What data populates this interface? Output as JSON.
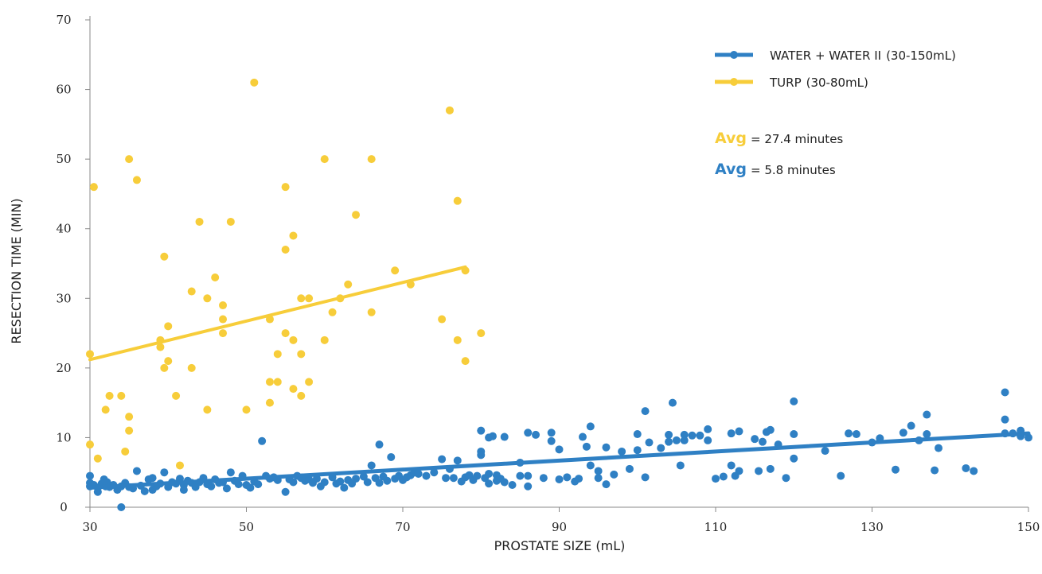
{
  "chart_data": {
    "type": "scatter",
    "xlabel": "PROSTATE SIZE (mL)",
    "ylabel": "RESECTION TIME (MIN)",
    "xlim": [
      30,
      150
    ],
    "ylim": [
      0,
      70
    ],
    "xticks": [
      30,
      50,
      70,
      90,
      110,
      130,
      150
    ],
    "yticks": [
      0,
      10,
      20,
      30,
      40,
      50,
      60,
      70
    ],
    "grid": false,
    "legend_position": "top-right",
    "colors": {
      "water": "#2f80c4",
      "turp": "#f7cd3a"
    },
    "series": [
      {
        "name": "WATER + WATER II",
        "name_suffix": "(30-150mL)",
        "color": "#2f80c4",
        "trend": [
          [
            30,
            2.8
          ],
          [
            150,
            10.6
          ]
        ],
        "points": [
          [
            30,
            4.5
          ],
          [
            30,
            3.5
          ],
          [
            30,
            3
          ],
          [
            30.5,
            3.2
          ],
          [
            31,
            2.2
          ],
          [
            31,
            2.8
          ],
          [
            31.5,
            3.4
          ],
          [
            31.8,
            4
          ],
          [
            32,
            3
          ],
          [
            32.2,
            3.6
          ],
          [
            32.5,
            2.9
          ],
          [
            33,
            3.2
          ],
          [
            33.5,
            2.5
          ],
          [
            34,
            3
          ],
          [
            34,
            0
          ],
          [
            34.5,
            3.5
          ],
          [
            35,
            2.9
          ],
          [
            35.5,
            2.7
          ],
          [
            36,
            5.2
          ],
          [
            36.5,
            3.1
          ],
          [
            37,
            2.3
          ],
          [
            37.5,
            4
          ],
          [
            38,
            4.2
          ],
          [
            38,
            2.5
          ],
          [
            38.5,
            3
          ],
          [
            39,
            3.4
          ],
          [
            39.5,
            5
          ],
          [
            40,
            2.9
          ],
          [
            40.5,
            3.6
          ],
          [
            41,
            3.4
          ],
          [
            41.5,
            4.1
          ],
          [
            42,
            3.2
          ],
          [
            42,
            2.5
          ],
          [
            42.5,
            3.8
          ],
          [
            43,
            3.5
          ],
          [
            43.5,
            2.9
          ],
          [
            44,
            3.6
          ],
          [
            44.5,
            4.2
          ],
          [
            45,
            3.3
          ],
          [
            45.5,
            3
          ],
          [
            46,
            4
          ],
          [
            46.5,
            3.5
          ],
          [
            47,
            3.6
          ],
          [
            47.5,
            2.7
          ],
          [
            48,
            5
          ],
          [
            48.5,
            3.8
          ],
          [
            49,
            3.3
          ],
          [
            49.5,
            4.5
          ],
          [
            50,
            3.2
          ],
          [
            50.5,
            2.8
          ],
          [
            51,
            3.7
          ],
          [
            51.5,
            3.3
          ],
          [
            52,
            9.5
          ],
          [
            52.5,
            4.5
          ],
          [
            53,
            4.1
          ],
          [
            53.5,
            4.3
          ],
          [
            54,
            3.9
          ],
          [
            55,
            2.2
          ],
          [
            55.5,
            4
          ],
          [
            56,
            3.6
          ],
          [
            56.5,
            4.5
          ],
          [
            57,
            4.2
          ],
          [
            57.5,
            3.8
          ],
          [
            58,
            4
          ],
          [
            58.5,
            3.5
          ],
          [
            59,
            4.1
          ],
          [
            59.5,
            3
          ],
          [
            60,
            3.6
          ],
          [
            61,
            4.3
          ],
          [
            61.5,
            3.4
          ],
          [
            62,
            3.7
          ],
          [
            62.5,
            2.8
          ],
          [
            63,
            3.9
          ],
          [
            63.5,
            3.4
          ],
          [
            64,
            4.1
          ],
          [
            65,
            4.4
          ],
          [
            65.5,
            3.6
          ],
          [
            66,
            6
          ],
          [
            66.5,
            4.2
          ],
          [
            67,
            3.5
          ],
          [
            67,
            9
          ],
          [
            67.5,
            4.4
          ],
          [
            68,
            3.8
          ],
          [
            68.5,
            7.2
          ],
          [
            69,
            4.1
          ],
          [
            69.5,
            4.5
          ],
          [
            70,
            3.9
          ],
          [
            70.5,
            4.3
          ],
          [
            71,
            4.6
          ],
          [
            71.5,
            5
          ],
          [
            72,
            4.8
          ],
          [
            73,
            4.5
          ],
          [
            74,
            5
          ],
          [
            75,
            6.9
          ],
          [
            75.5,
            4.2
          ],
          [
            76,
            5.5
          ],
          [
            76.5,
            4.2
          ],
          [
            77,
            6.7
          ],
          [
            77.5,
            3.7
          ],
          [
            78,
            4.3
          ],
          [
            78.5,
            4.6
          ],
          [
            79,
            3.9
          ],
          [
            79.5,
            4.5
          ],
          [
            80,
            11
          ],
          [
            80,
            8
          ],
          [
            80,
            7.5
          ],
          [
            80.5,
            4.2
          ],
          [
            81,
            4.8
          ],
          [
            81,
            10
          ],
          [
            81,
            3.4
          ],
          [
            81.5,
            10.2
          ],
          [
            82,
            4.6
          ],
          [
            82,
            3.8
          ],
          [
            82.5,
            4.1
          ],
          [
            83,
            3.6
          ],
          [
            83,
            10.1
          ],
          [
            84,
            3.2
          ],
          [
            85,
            4.5
          ],
          [
            85,
            6.4
          ],
          [
            86,
            10.7
          ],
          [
            86,
            4.5
          ],
          [
            86,
            3
          ],
          [
            87,
            10.4
          ],
          [
            88,
            4.2
          ],
          [
            89,
            9.5
          ],
          [
            89,
            10.7
          ],
          [
            90,
            8.3
          ],
          [
            90,
            4
          ],
          [
            91,
            4.3
          ],
          [
            92,
            3.7
          ],
          [
            92.5,
            4.1
          ],
          [
            93,
            10.1
          ],
          [
            93.5,
            8.7
          ],
          [
            94,
            11.6
          ],
          [
            94,
            6
          ],
          [
            95,
            4.2
          ],
          [
            95,
            5.2
          ],
          [
            96,
            8.6
          ],
          [
            96,
            3.3
          ],
          [
            97,
            4.7
          ],
          [
            98,
            8
          ],
          [
            99,
            5.5
          ],
          [
            100,
            10.5
          ],
          [
            100,
            8.2
          ],
          [
            101,
            13.8
          ],
          [
            101,
            4.3
          ],
          [
            101.5,
            9.3
          ],
          [
            103,
            8.5
          ],
          [
            104,
            10.4
          ],
          [
            104,
            9.4
          ],
          [
            104.5,
            15
          ],
          [
            105,
            9.6
          ],
          [
            105.5,
            6
          ],
          [
            106,
            10.4
          ],
          [
            106,
            9.6
          ],
          [
            107,
            10.3
          ],
          [
            108,
            10.3
          ],
          [
            109,
            11.2
          ],
          [
            109,
            9.6
          ],
          [
            110,
            4.1
          ],
          [
            111,
            4.4
          ],
          [
            112,
            10.6
          ],
          [
            112,
            6
          ],
          [
            112.5,
            4.5
          ],
          [
            113,
            10.9
          ],
          [
            113,
            5.2
          ],
          [
            115,
            9.8
          ],
          [
            115.5,
            5.2
          ],
          [
            116,
            9.4
          ],
          [
            116.5,
            10.8
          ],
          [
            117,
            11.1
          ],
          [
            117,
            5.5
          ],
          [
            118,
            9
          ],
          [
            119,
            4.2
          ],
          [
            120,
            15.2
          ],
          [
            120,
            10.5
          ],
          [
            120,
            7
          ],
          [
            124,
            8.1
          ],
          [
            126,
            4.5
          ],
          [
            127,
            10.6
          ],
          [
            128,
            10.5
          ],
          [
            130,
            9.3
          ],
          [
            131,
            9.9
          ],
          [
            133,
            5.4
          ],
          [
            134,
            10.7
          ],
          [
            135,
            11.7
          ],
          [
            136,
            9.6
          ],
          [
            137,
            13.3
          ],
          [
            137,
            10.5
          ],
          [
            138,
            5.3
          ],
          [
            138.5,
            8.5
          ],
          [
            142,
            5.6
          ],
          [
            143,
            5.2
          ],
          [
            147,
            16.5
          ],
          [
            147,
            12.6
          ],
          [
            147,
            10.6
          ],
          [
            148,
            10.6
          ],
          [
            149,
            11
          ],
          [
            149,
            10.2
          ],
          [
            150,
            10
          ]
        ]
      },
      {
        "name": "TURP",
        "name_suffix": "(30-80mL)",
        "color": "#f7cd3a",
        "trend": [
          [
            30,
            21.2
          ],
          [
            78,
            34.5
          ]
        ],
        "points": [
          [
            30,
            9
          ],
          [
            30,
            22
          ],
          [
            30.5,
            46
          ],
          [
            31,
            7
          ],
          [
            32,
            14
          ],
          [
            32.5,
            16
          ],
          [
            34,
            16
          ],
          [
            34.5,
            8
          ],
          [
            35,
            50
          ],
          [
            35,
            11
          ],
          [
            35,
            13
          ],
          [
            36,
            47
          ],
          [
            39,
            24
          ],
          [
            39,
            23
          ],
          [
            39.5,
            36
          ],
          [
            39.5,
            20
          ],
          [
            40,
            21
          ],
          [
            40,
            26
          ],
          [
            41,
            16
          ],
          [
            41.5,
            6
          ],
          [
            43,
            20
          ],
          [
            43,
            31
          ],
          [
            44,
            41
          ],
          [
            45,
            30
          ],
          [
            45,
            14
          ],
          [
            46,
            33
          ],
          [
            47,
            25
          ],
          [
            47,
            27
          ],
          [
            47,
            29
          ],
          [
            48,
            41
          ],
          [
            50,
            14
          ],
          [
            51,
            61
          ],
          [
            53,
            27
          ],
          [
            53,
            15
          ],
          [
            53,
            18
          ],
          [
            54,
            22
          ],
          [
            54,
            18
          ],
          [
            55,
            46
          ],
          [
            55,
            37
          ],
          [
            55,
            25
          ],
          [
            56,
            17
          ],
          [
            56,
            39
          ],
          [
            56,
            24
          ],
          [
            57,
            30
          ],
          [
            57,
            16
          ],
          [
            57,
            22
          ],
          [
            58,
            30
          ],
          [
            58,
            18
          ],
          [
            60,
            24
          ],
          [
            60,
            50
          ],
          [
            61,
            28
          ],
          [
            62,
            30
          ],
          [
            63,
            32
          ],
          [
            64,
            42
          ],
          [
            66,
            50
          ],
          [
            66,
            28
          ],
          [
            69,
            34
          ],
          [
            71,
            32
          ],
          [
            75,
            27
          ],
          [
            76,
            57
          ],
          [
            77,
            24
          ],
          [
            77,
            44
          ],
          [
            78,
            21
          ],
          [
            78,
            34
          ],
          [
            80,
            25
          ]
        ]
      }
    ],
    "legend": [
      {
        "name": "WATER + WATER II",
        "suffix": "(30-150mL)"
      },
      {
        "name": "TURP",
        "suffix": "(30-80mL)"
      }
    ],
    "annotations": [
      {
        "label": "Avg",
        "value": "= 27.4 minutes"
      },
      {
        "label": "Avg",
        "value": "= 5.8 minutes"
      }
    ]
  }
}
